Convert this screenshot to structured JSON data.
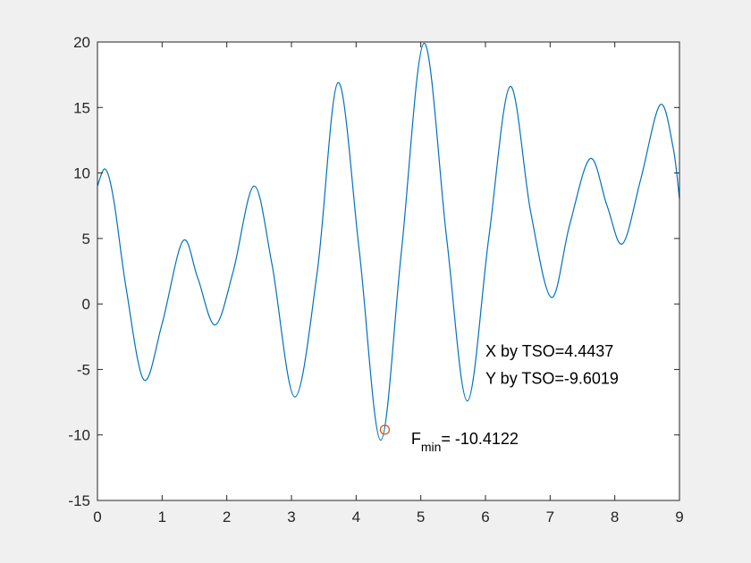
{
  "chart_data": {
    "type": "line",
    "title": "",
    "xlabel": "",
    "ylabel": "",
    "xlim": [
      0,
      9
    ],
    "ylim": [
      -15,
      20
    ],
    "x_ticks": [
      0,
      1,
      2,
      3,
      4,
      5,
      6,
      7,
      8,
      9
    ],
    "y_ticks": [
      -15,
      -10,
      -5,
      0,
      5,
      10,
      15,
      20
    ],
    "x_tick_labels": [
      "0",
      "1",
      "2",
      "3",
      "4",
      "5",
      "6",
      "7",
      "8",
      "9"
    ],
    "y_tick_labels": [
      "-15",
      "-10",
      "-5",
      "0",
      "5",
      "10",
      "15",
      "20"
    ],
    "grid": false,
    "legend": "none",
    "series": [
      {
        "color": "#0072bd",
        "x": [
          0,
          0.12,
          0.25,
          0.45,
          0.72,
          1.0,
          1.32,
          1.55,
          1.82,
          2.1,
          2.42,
          2.7,
          3.05,
          3.4,
          3.72,
          4.05,
          4.38,
          4.7,
          5.05,
          5.4,
          5.72,
          6.05,
          6.38,
          6.7,
          7.02,
          7.3,
          7.62,
          7.88,
          8.12,
          8.4,
          8.7,
          8.9,
          9.0
        ],
        "y": [
          9.0,
          10.3,
          8.0,
          1.0,
          -5.8,
          -1.5,
          4.8,
          2.0,
          -1.6,
          2.5,
          9.0,
          3.0,
          -7.1,
          2.5,
          16.9,
          4.0,
          -10.4,
          4.0,
          19.9,
          5.0,
          -7.4,
          5.0,
          16.6,
          7.0,
          0.5,
          6.0,
          11.1,
          7.5,
          4.6,
          9.5,
          15.2,
          12.0,
          8.0
        ]
      }
    ],
    "marker": {
      "x": 4.4437,
      "y": -9.6019,
      "color": "#d95319",
      "shape": "circle"
    },
    "annotations": [
      {
        "x": 6.0,
        "y": -4.0,
        "text": "X by TSO=4.4437"
      },
      {
        "x": 6.0,
        "y": -6.1,
        "text": "Y by TSO=-9.6019"
      }
    ],
    "fmin_annotation": {
      "x": 4.85,
      "y": -10.7,
      "base": "F",
      "subscript": "min",
      "rest": "= -10.4122"
    }
  }
}
